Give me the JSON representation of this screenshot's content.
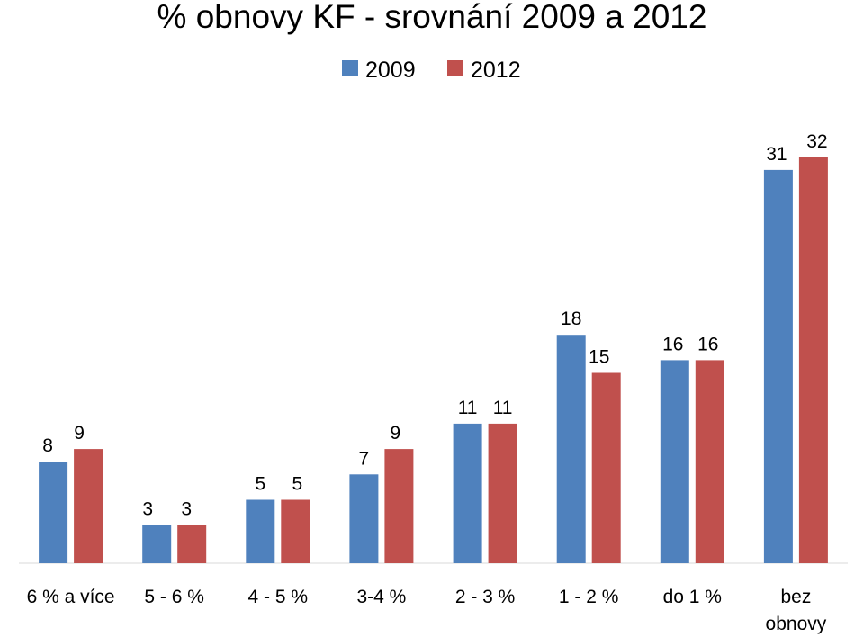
{
  "chart_data": {
    "type": "bar",
    "title": "% obnovy KF - srovnání 2009 a 2012",
    "categories": [
      [
        "6 % a více"
      ],
      [
        "5 - 6 %"
      ],
      [
        "4 - 5 %"
      ],
      [
        "3-4 %"
      ],
      [
        "2 - 3 %"
      ],
      [
        "1 - 2 %"
      ],
      [
        "do 1 %"
      ],
      [
        "bez",
        "obnovy"
      ]
    ],
    "series": [
      {
        "name": "2009",
        "color": "#4F81BD",
        "values": [
          8,
          3,
          5,
          7,
          11,
          18,
          16,
          31
        ]
      },
      {
        "name": "2012",
        "color": "#C0504D",
        "values": [
          9,
          3,
          5,
          9,
          11,
          15,
          16,
          32
        ]
      }
    ],
    "xlabel": "",
    "ylabel": "",
    "ylim": [
      0,
      32
    ],
    "grid": false,
    "legend": "top-center"
  }
}
